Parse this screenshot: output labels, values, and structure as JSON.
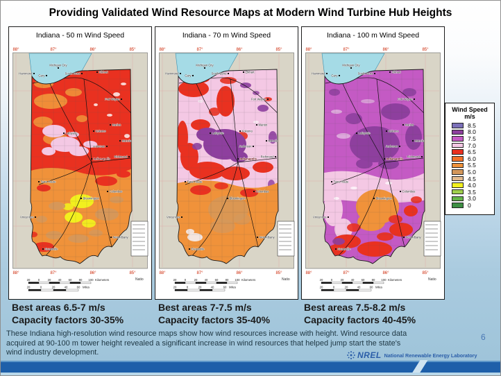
{
  "slide": {
    "title": "Providing Validated Wind Resource Maps at Modern Wind Turbine Hub Heights",
    "page_number": "6",
    "footer_text": "These Indiana high-resolution wind resource maps show how wind resources increase with height. Wind resource data acquired at 90-100 m tower height revealed a significant increase in wind resources that helped jump start the state's wind industry development.",
    "logo": {
      "acronym": "NREL",
      "name": "National Renewable Energy Laboratory"
    }
  },
  "legend": {
    "title": "Wind Speed",
    "units": "m/s",
    "entries": [
      {
        "label": "8.5",
        "color": "#7b70b8"
      },
      {
        "label": "8.0",
        "color": "#8e3f9e"
      },
      {
        "label": "7.5",
        "color": "#c45ac4"
      },
      {
        "label": "7.0",
        "color": "#f4c8e4"
      },
      {
        "label": "6.5",
        "color": "#e93120"
      },
      {
        "label": "6.0",
        "color": "#f2722b"
      },
      {
        "label": "5.5",
        "color": "#f0923a"
      },
      {
        "label": "5.0",
        "color": "#d4985c"
      },
      {
        "label": "4.5",
        "color": "#e2ba8e"
      },
      {
        "label": "4.0",
        "color": "#f2f01e"
      },
      {
        "label": "3.5",
        "color": "#9fcf4e"
      },
      {
        "label": "3.0",
        "color": "#64b54a"
      },
      {
        "label": "0",
        "color": "#3e8f44"
      }
    ]
  },
  "maps": [
    {
      "title": "Indiana - 50 m Wind Speed",
      "caption": [
        "Best areas 6.5-7 m/s",
        "Capacity factors 30-35%"
      ]
    },
    {
      "title": "Indiana - 70 m Wind Speed",
      "caption": [
        "Best areas 7-7.5 m/s",
        "Capacity factors 35-40%"
      ]
    },
    {
      "title": "Indiana - 100 m Wind Speed",
      "caption": [
        "Best areas 7.5-8.2 m/s",
        "Capacity factors 40-45%"
      ]
    }
  ],
  "map_common": {
    "lon_labels": [
      "88°",
      "87°",
      "86°",
      "85°"
    ],
    "km_ticks": [
      "20",
      "0",
      "20",
      "40",
      "60",
      "80",
      "100"
    ],
    "km_unit": "Kilometers",
    "mile_ticks": [
      "20",
      "0",
      "20",
      "40",
      "60"
    ],
    "mile_unit": "Miles",
    "credit_fragment": "Natio",
    "cities": [
      "Michigan City",
      "Gary",
      "Hammond",
      "South Bend",
      "Elkhart",
      "Fort Wayne",
      "Marion",
      "Lafayette",
      "Kokomo",
      "Anderson",
      "Muncie",
      "Indianapolis",
      "Richmond",
      "Terre Haute",
      "Columbus",
      "Bloomington",
      "Vincennes",
      "New Albany",
      "Evansville"
    ]
  }
}
